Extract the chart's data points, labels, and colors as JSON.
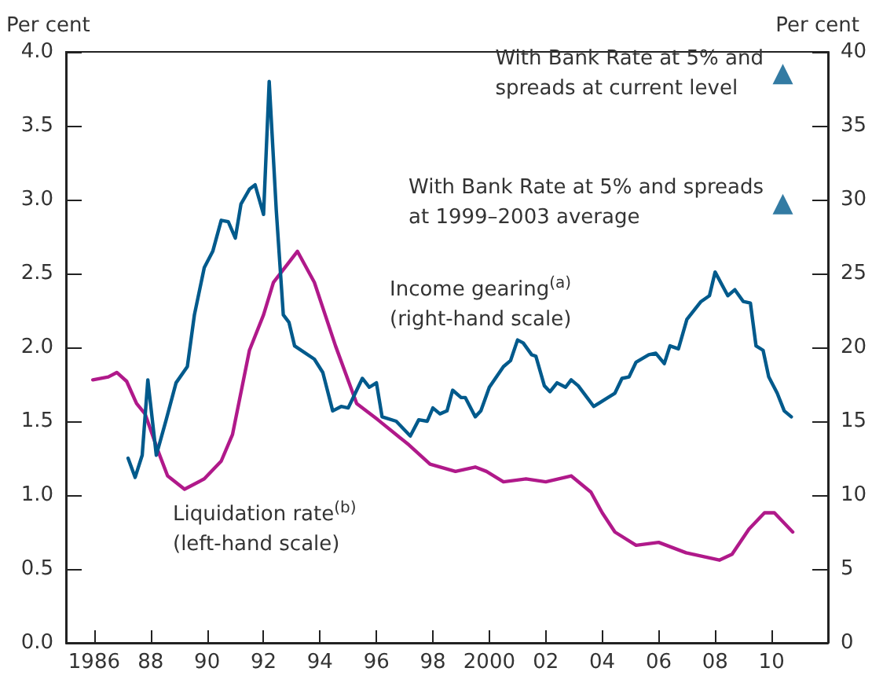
{
  "chart_data": {
    "type": "line",
    "ylabel": "Per cent",
    "y2label": "Per cent",
    "legend": false,
    "grid": false,
    "xlim": [
      1985,
      2012
    ],
    "xticks": [
      {
        "value": 1986,
        "label": "1986"
      },
      {
        "value": 1988,
        "label": "88"
      },
      {
        "value": 1990,
        "label": "90"
      },
      {
        "value": 1992,
        "label": "92"
      },
      {
        "value": 1994,
        "label": "94"
      },
      {
        "value": 1996,
        "label": "96"
      },
      {
        "value": 1998,
        "label": "98"
      },
      {
        "value": 2000,
        "label": "2000"
      },
      {
        "value": 2002,
        "label": "02"
      },
      {
        "value": 2004,
        "label": "04"
      },
      {
        "value": 2006,
        "label": "06"
      },
      {
        "value": 2008,
        "label": "08"
      },
      {
        "value": 2010,
        "label": "10"
      }
    ],
    "ylim": [
      0,
      4
    ],
    "yticks": [
      {
        "value": 0,
        "label": "0.0"
      },
      0.5,
      {
        "value": 1,
        "label": "1.0"
      },
      1.5,
      {
        "value": 2,
        "label": "2.0"
      },
      2.5,
      {
        "value": 3,
        "label": "3.0"
      },
      3.5,
      {
        "value": 4,
        "label": "4.0"
      }
    ],
    "y2lim": [
      0,
      40
    ],
    "y2ticks": [
      0,
      5,
      10,
      15,
      20,
      25,
      30,
      35,
      40
    ],
    "annotations": [
      "With Bank Rate at 5% and\nspreads at current level",
      "With Bank Rate at 5% and spreads\nat 1999–2003 average"
    ],
    "series": [
      {
        "name": "Liquidation rate$^{(b)}$\n(left-hand scale)",
        "color": "#b0198a",
        "x": [
          1985.95,
          1986.5,
          1986.8,
          1987.15,
          1987.5,
          1987.8,
          1988.26,
          1988.6,
          1989.2,
          1989.9,
          1990.5,
          1990.9,
          1991.5,
          1992,
          1992.35,
          1993.2,
          1993.8,
          1994.55,
          1995.3,
          1996.05,
          1997.15,
          1997.9,
          1998.8,
          1999.5,
          1999.9,
          2000.5,
          2001.3,
          2002,
          2002.9,
          2003.6,
          2004,
          2004.45,
          2005.2,
          2006,
          2006.97,
          2008.15,
          2008.6,
          2009.2,
          2009.75,
          2010.1,
          2010.75
        ],
        "values": [
          1.78,
          1.8,
          1.83,
          1.77,
          1.62,
          1.55,
          1.3,
          1.13,
          1.04,
          1.11,
          1.23,
          1.41,
          1.98,
          2.22,
          2.44,
          2.65,
          2.44,
          2.01,
          1.62,
          1.51,
          1.34,
          1.21,
          1.16,
          1.19,
          1.16,
          1.09,
          1.11,
          1.09,
          1.13,
          1.02,
          0.88,
          0.75,
          0.66,
          0.68,
          0.61,
          0.56,
          0.6,
          0.77,
          0.88,
          0.88,
          0.75
        ]
      },
      {
        "name": "Income gearing$^{(a)}$\n(right-hand scale)",
        "color": "#005a8c",
        "axis": "y2",
        "x": [
          1987.2,
          1987.45,
          1987.7,
          1987.9,
          1988.2,
          1988.55,
          1988.9,
          1989.3,
          1989.55,
          1989.9,
          1990.2,
          1990.5,
          1990.75,
          1991,
          1991.2,
          1991.5,
          1991.7,
          1992,
          1992.2,
          1992.45,
          1992.7,
          1992.9,
          1993.1,
          1993.8,
          1994.1,
          1994.45,
          1994.75,
          1995,
          1995.5,
          1995.75,
          1996,
          1996.2,
          1996.7,
          1997.2,
          1997.5,
          1997.8,
          1998,
          1998.25,
          1998.5,
          1998.7,
          1999,
          1999.15,
          1999.5,
          1999.7,
          2000,
          2000.5,
          2000.75,
          2001,
          2001.2,
          2001.5,
          2001.65,
          2001.95,
          2002.15,
          2002.4,
          2002.7,
          2002.9,
          2003.15,
          2003.7,
          2004.45,
          2004.7,
          2004.95,
          2005.2,
          2005.65,
          2005.9,
          2006.2,
          2006.4,
          2006.7,
          2007,
          2007.5,
          2007.8,
          2008,
          2008.45,
          2008.7,
          2009,
          2009.25,
          2009.45,
          2009.7,
          2009.9,
          2010.2,
          2010.45,
          2010.7
        ],
        "values": [
          12.5,
          11.2,
          12.7,
          17.8,
          12.7,
          15.1,
          17.6,
          18.7,
          22.2,
          25.4,
          26.5,
          28.6,
          28.5,
          27.4,
          29.7,
          30.7,
          31,
          29,
          38,
          29.3,
          22.2,
          21.7,
          20.1,
          19.2,
          18.3,
          15.7,
          16,
          15.9,
          17.9,
          17.3,
          17.6,
          15.3,
          15,
          14,
          15.1,
          15,
          15.9,
          15.5,
          15.7,
          17.1,
          16.6,
          16.6,
          15.3,
          15.7,
          17.3,
          18.7,
          19.1,
          20.5,
          20.3,
          19.5,
          19.4,
          17.4,
          17,
          17.6,
          17.3,
          17.8,
          17.4,
          16,
          16.9,
          17.9,
          18,
          19,
          19.5,
          19.6,
          18.9,
          20.1,
          19.9,
          21.9,
          23.1,
          23.5,
          25.1,
          23.5,
          23.9,
          23.1,
          23,
          20.1,
          19.8,
          18,
          16.9,
          15.7,
          15.3
        ]
      },
      {
        "type": "scatter",
        "color": "#005a8c",
        "axis": "y2",
        "marker": "triangle",
        "x": [
          2010.4,
          2010.4
        ],
        "values": [
          38.5,
          29.7
        ]
      }
    ]
  }
}
